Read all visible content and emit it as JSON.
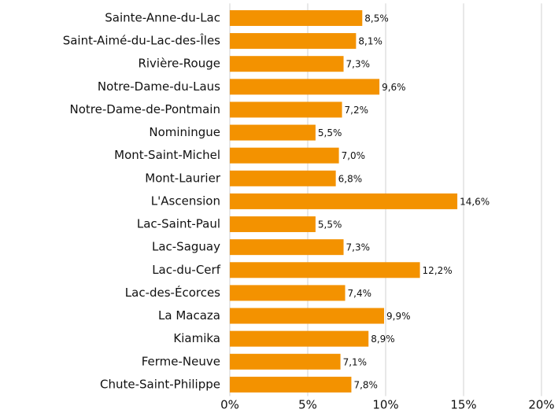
{
  "chart_data": {
    "type": "bar",
    "orientation": "horizontal",
    "categories": [
      "Sainte-Anne-du-Lac",
      "Saint-Aimé-du-Lac-des-Îles",
      "Rivière-Rouge",
      "Notre-Dame-du-Laus",
      "Notre-Dame-de-Pontmain",
      "Nominingue",
      "Mont-Saint-Michel",
      "Mont-Laurier",
      "L'Ascension",
      "Lac-Saint-Paul",
      "Lac-Saguay",
      "Lac-du-Cerf",
      "Lac-des-Écorces",
      "La Macaza",
      "Kiamika",
      "Ferme-Neuve",
      "Chute-Saint-Philippe"
    ],
    "values": [
      8.5,
      8.1,
      7.3,
      9.6,
      7.2,
      5.5,
      7.0,
      6.8,
      14.6,
      5.5,
      7.3,
      12.2,
      7.4,
      9.9,
      8.9,
      7.1,
      7.8
    ],
    "value_labels": [
      "8,5%",
      "8,1%",
      "7,3%",
      "9,6%",
      "7,2%",
      "5,5%",
      "7,0%",
      "6,8%",
      "14,6%",
      "5,5%",
      "7,3%",
      "12,2%",
      "7,4%",
      "9,9%",
      "8,9%",
      "7,1%",
      "7,8%"
    ],
    "color": "#f39200",
    "xlim": [
      0,
      20
    ],
    "xticks": [
      {
        "value": 0,
        "label": "0%"
      },
      {
        "value": 5,
        "label": "5%"
      },
      {
        "value": 10,
        "label": "10%"
      },
      {
        "value": 15,
        "label": "15%"
      },
      {
        "value": 20,
        "label": "20%"
      }
    ],
    "grid": true
  }
}
